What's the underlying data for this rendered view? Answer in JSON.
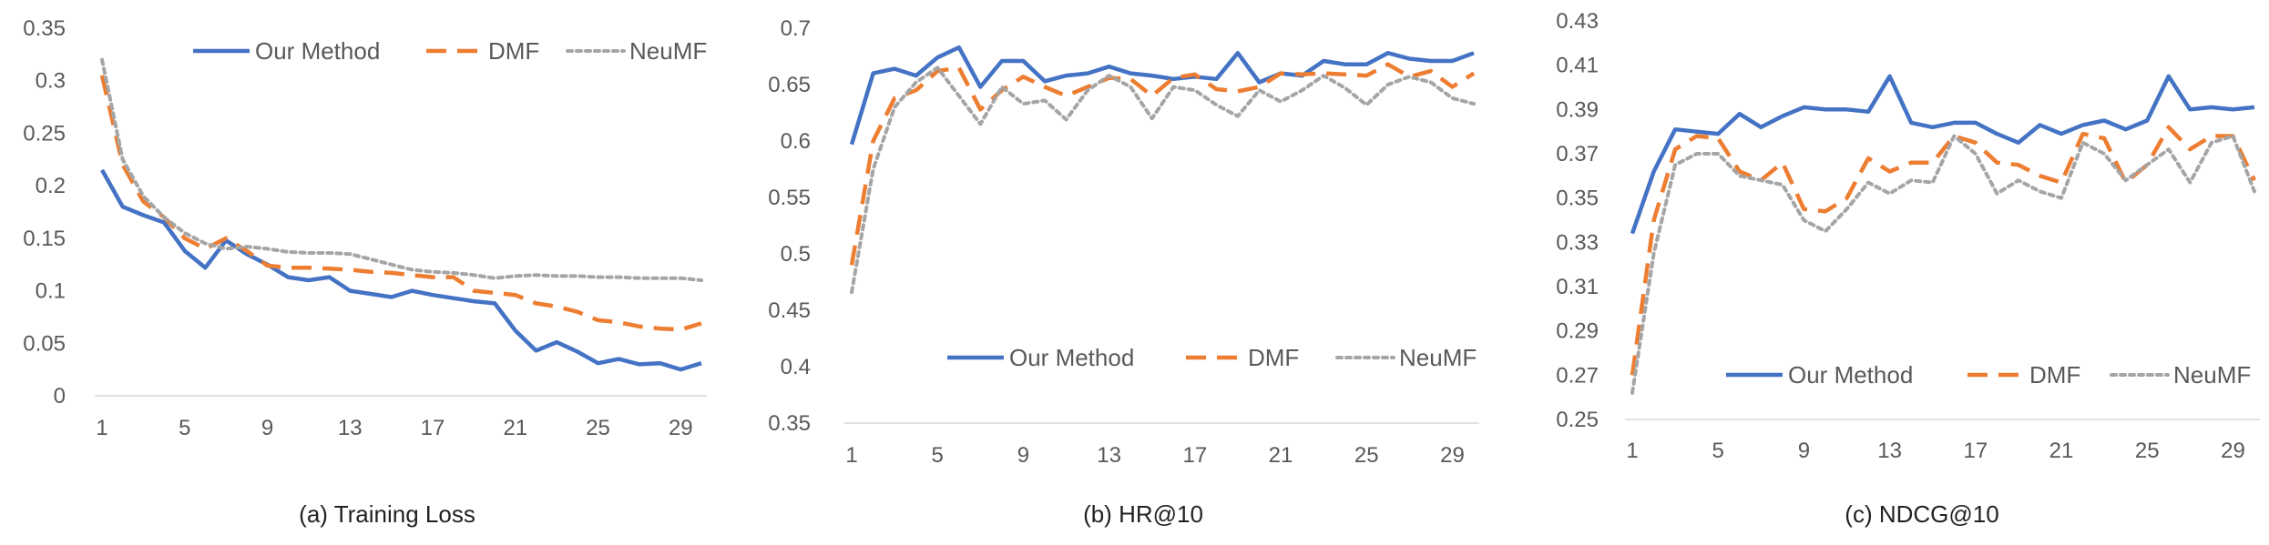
{
  "colors": {
    "our_method": "#4472C4",
    "dmf": "#ED7D31",
    "neumf": "#A5A5A5",
    "tick_text": "#595959",
    "caption_text": "#222222"
  },
  "chart_data": [
    {
      "type": "line",
      "caption": "(a) Training Loss",
      "x": [
        1,
        2,
        3,
        4,
        5,
        6,
        7,
        8,
        9,
        10,
        11,
        12,
        13,
        14,
        15,
        16,
        17,
        18,
        19,
        20,
        21,
        22,
        23,
        24,
        25,
        26,
        27,
        28,
        29,
        30
      ],
      "x_ticks": [
        "1",
        "5",
        "9",
        "13",
        "17",
        "21",
        "25",
        "29"
      ],
      "y_ticks": [
        "0",
        "0.05",
        "0.1",
        "0.15",
        "0.2",
        "0.25",
        "0.3",
        "0.35"
      ],
      "ylim": [
        0,
        0.35
      ],
      "legend_position": "top-right",
      "series": [
        {
          "name": "Our Method",
          "style": "solid",
          "values": [
            0.215,
            0.18,
            0.172,
            0.165,
            0.138,
            0.122,
            0.148,
            0.135,
            0.125,
            0.113,
            0.11,
            0.113,
            0.1,
            0.097,
            0.094,
            0.1,
            0.096,
            0.093,
            0.09,
            0.088,
            0.062,
            0.043,
            0.051,
            0.042,
            0.031,
            0.035,
            0.03,
            0.031,
            0.025,
            0.031
          ]
        },
        {
          "name": "DMF",
          "style": "dashed",
          "values": [
            0.305,
            0.22,
            0.185,
            0.17,
            0.15,
            0.14,
            0.15,
            0.138,
            0.124,
            0.122,
            0.122,
            0.121,
            0.12,
            0.118,
            0.117,
            0.115,
            0.113,
            0.113,
            0.1,
            0.098,
            0.096,
            0.088,
            0.085,
            0.08,
            0.072,
            0.07,
            0.066,
            0.064,
            0.063,
            0.069
          ]
        },
        {
          "name": "NeuMF",
          "style": "dotted",
          "values": [
            0.32,
            0.225,
            0.19,
            0.17,
            0.155,
            0.145,
            0.14,
            0.142,
            0.14,
            0.137,
            0.136,
            0.136,
            0.135,
            0.13,
            0.125,
            0.12,
            0.118,
            0.117,
            0.115,
            0.112,
            0.114,
            0.115,
            0.114,
            0.114,
            0.113,
            0.113,
            0.112,
            0.112,
            0.112,
            0.11
          ]
        }
      ]
    },
    {
      "type": "line",
      "caption": "(b) HR@10",
      "x": [
        1,
        2,
        3,
        4,
        5,
        6,
        7,
        8,
        9,
        10,
        11,
        12,
        13,
        14,
        15,
        16,
        17,
        18,
        19,
        20,
        21,
        22,
        23,
        24,
        25,
        26,
        27,
        28,
        29,
        30
      ],
      "x_ticks": [
        "1",
        "5",
        "9",
        "13",
        "17",
        "21",
        "25",
        "29"
      ],
      "y_ticks": [
        "0.35",
        "0.4",
        "0.45",
        "0.5",
        "0.55",
        "0.6",
        "0.65",
        "0.7"
      ],
      "ylim": [
        0.35,
        0.7
      ],
      "legend_position": "bottom",
      "series": [
        {
          "name": "Our Method",
          "style": "solid",
          "values": [
            0.597,
            0.66,
            0.664,
            0.658,
            0.674,
            0.683,
            0.648,
            0.671,
            0.671,
            0.653,
            0.658,
            0.66,
            0.666,
            0.66,
            0.658,
            0.655,
            0.657,
            0.655,
            0.678,
            0.652,
            0.66,
            0.658,
            0.671,
            0.668,
            0.668,
            0.678,
            0.673,
            0.671,
            0.671,
            0.678
          ]
        },
        {
          "name": "DMF",
          "style": "dashed",
          "values": [
            0.49,
            0.6,
            0.638,
            0.645,
            0.662,
            0.665,
            0.628,
            0.645,
            0.657,
            0.648,
            0.64,
            0.648,
            0.656,
            0.655,
            0.64,
            0.656,
            0.659,
            0.646,
            0.644,
            0.648,
            0.66,
            0.659,
            0.66,
            0.659,
            0.658,
            0.668,
            0.657,
            0.662,
            0.648,
            0.66
          ]
        },
        {
          "name": "NeuMF",
          "style": "dotted",
          "values": [
            0.466,
            0.575,
            0.63,
            0.652,
            0.665,
            0.64,
            0.615,
            0.648,
            0.633,
            0.636,
            0.619,
            0.645,
            0.658,
            0.648,
            0.62,
            0.648,
            0.645,
            0.632,
            0.622,
            0.645,
            0.635,
            0.645,
            0.658,
            0.647,
            0.632,
            0.65,
            0.657,
            0.652,
            0.638,
            0.633
          ]
        }
      ]
    },
    {
      "type": "line",
      "caption": "(c) NDCG@10",
      "x": [
        1,
        2,
        3,
        4,
        5,
        6,
        7,
        8,
        9,
        10,
        11,
        12,
        13,
        14,
        15,
        16,
        17,
        18,
        19,
        20,
        21,
        22,
        23,
        24,
        25,
        26,
        27,
        28,
        29,
        30
      ],
      "x_ticks": [
        "1",
        "5",
        "9",
        "13",
        "17",
        "21",
        "25",
        "29"
      ],
      "y_ticks": [
        "0.25",
        "0.27",
        "0.29",
        "0.31",
        "0.33",
        "0.35",
        "0.37",
        "0.39",
        "0.41",
        "0.43"
      ],
      "ylim": [
        0.25,
        0.43
      ],
      "legend_position": "bottom",
      "series": [
        {
          "name": "Our Method",
          "style": "solid",
          "values": [
            0.334,
            0.362,
            0.381,
            0.38,
            0.379,
            0.388,
            0.382,
            0.387,
            0.391,
            0.39,
            0.39,
            0.389,
            0.405,
            0.384,
            0.382,
            0.384,
            0.384,
            0.379,
            0.375,
            0.383,
            0.379,
            0.383,
            0.385,
            0.381,
            0.385,
            0.405,
            0.39,
            0.391,
            0.39,
            0.391
          ]
        },
        {
          "name": "DMF",
          "style": "dashed",
          "values": [
            0.27,
            0.34,
            0.372,
            0.378,
            0.377,
            0.362,
            0.358,
            0.366,
            0.345,
            0.344,
            0.35,
            0.368,
            0.362,
            0.366,
            0.366,
            0.378,
            0.375,
            0.366,
            0.365,
            0.36,
            0.357,
            0.379,
            0.377,
            0.357,
            0.365,
            0.382,
            0.372,
            0.378,
            0.378,
            0.358
          ]
        },
        {
          "name": "NeuMF",
          "style": "dotted",
          "values": [
            0.262,
            0.325,
            0.365,
            0.37,
            0.37,
            0.36,
            0.358,
            0.356,
            0.34,
            0.335,
            0.345,
            0.357,
            0.352,
            0.358,
            0.357,
            0.378,
            0.37,
            0.352,
            0.358,
            0.353,
            0.35,
            0.375,
            0.37,
            0.358,
            0.365,
            0.372,
            0.357,
            0.375,
            0.378,
            0.353
          ]
        }
      ]
    }
  ]
}
